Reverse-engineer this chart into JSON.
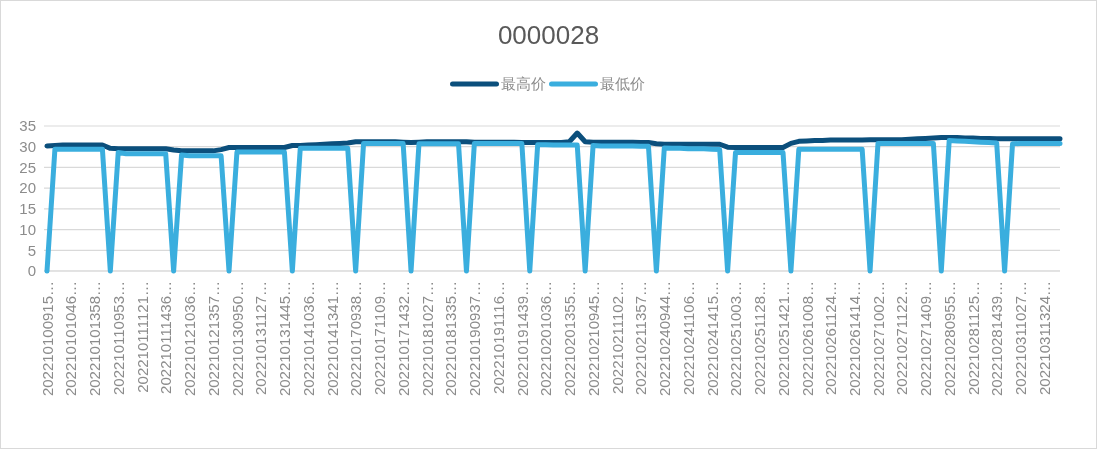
{
  "chart_data": {
    "type": "line",
    "title": "0000028",
    "categories": [
      "202210100915…",
      null,
      null,
      "202210101046…",
      null,
      null,
      "202210101358…",
      null,
      null,
      "202210110953…",
      null,
      null,
      "202210111121…",
      null,
      null,
      "202210111436…",
      null,
      null,
      "202210121036…",
      null,
      null,
      "202210121357…",
      null,
      null,
      "202210130950…",
      null,
      null,
      "202210131127…",
      null,
      null,
      "202210131445…",
      null,
      null,
      "202210141036…",
      null,
      null,
      "202210141341…",
      null,
      null,
      "202210170938…",
      null,
      null,
      "202210171109…",
      null,
      null,
      "202210171432…",
      null,
      null,
      "202210181027…",
      null,
      null,
      "202210181335…",
      null,
      null,
      "202210190937…",
      null,
      null,
      "202210191116…",
      null,
      null,
      "202210191439…",
      null,
      null,
      "202210201036…",
      null,
      null,
      "202210201355…",
      null,
      null,
      "202210210945…",
      null,
      null,
      "202210211102…",
      null,
      null,
      "202210211357…",
      null,
      null,
      "202210240944…",
      null,
      null,
      "202210241106…",
      null,
      null,
      "202210241415…",
      null,
      null,
      "202210251003…",
      null,
      null,
      "202210251128…",
      null,
      null,
      "202210251421…",
      null,
      null,
      "202210261008…",
      null,
      null,
      "202210261124…",
      null,
      null,
      "202210261414…",
      null,
      null,
      "202210271002…",
      null,
      null,
      "202210271122…",
      null,
      null,
      "202210271409…",
      null,
      null,
      "202210280955…",
      null,
      null,
      "202210281125…",
      null,
      null,
      "202210281439…",
      null,
      null,
      "202210311027…",
      null,
      null,
      "202210311324…",
      null,
      null
    ],
    "series": [
      {
        "name": "最高价",
        "color": "#0b4f7c",
        "values": [
          30.2,
          30.3,
          30.4,
          30.4,
          30.4,
          30.4,
          30.4,
          30.4,
          29.6,
          29.5,
          29.5,
          29.5,
          29.5,
          29.5,
          29.5,
          29.5,
          29.2,
          29.0,
          29.0,
          29.0,
          29.0,
          29.0,
          29.3,
          29.8,
          29.8,
          29.8,
          29.8,
          29.8,
          29.8,
          29.8,
          29.8,
          30.3,
          30.3,
          30.4,
          30.5,
          30.6,
          30.7,
          30.8,
          30.9,
          31.2,
          31.2,
          31.2,
          31.2,
          31.2,
          31.2,
          31.1,
          31.0,
          31.1,
          31.2,
          31.2,
          31.2,
          31.2,
          31.2,
          31.2,
          31.1,
          31.1,
          31.1,
          31.1,
          31.1,
          31.1,
          31.0,
          31.0,
          31.0,
          31.0,
          31.0,
          31.0,
          31.2,
          33.3,
          31.2,
          31.1,
          31.1,
          31.1,
          31.1,
          31.1,
          31.1,
          31.0,
          31.0,
          30.7,
          30.6,
          30.6,
          30.6,
          30.6,
          30.6,
          30.6,
          30.6,
          30.6,
          29.9,
          29.8,
          29.8,
          29.8,
          29.8,
          29.8,
          29.8,
          29.8,
          30.8,
          31.3,
          31.4,
          31.5,
          31.5,
          31.6,
          31.6,
          31.6,
          31.6,
          31.6,
          31.7,
          31.7,
          31.7,
          31.7,
          31.7,
          31.8,
          31.9,
          32.0,
          32.1,
          32.2,
          32.2,
          32.2,
          32.1,
          32.1,
          32.0,
          32.0,
          31.9,
          31.9,
          31.9,
          31.9,
          31.9,
          31.9,
          31.9,
          31.9,
          31.9
        ]
      },
      {
        "name": "最低价",
        "color": "#3aaede",
        "values": [
          0,
          29.4,
          29.4,
          29.4,
          29.4,
          29.4,
          29.4,
          29.4,
          0,
          28.6,
          28.3,
          28.3,
          28.3,
          28.3,
          28.3,
          28.3,
          0,
          28.0,
          27.8,
          27.8,
          27.8,
          27.8,
          27.8,
          0,
          28.7,
          28.7,
          28.7,
          28.7,
          28.7,
          28.7,
          28.7,
          0,
          29.6,
          29.6,
          29.6,
          29.6,
          29.6,
          29.6,
          29.6,
          0,
          30.8,
          30.8,
          30.8,
          30.8,
          30.8,
          30.8,
          0,
          30.7,
          30.7,
          30.7,
          30.7,
          30.7,
          30.7,
          0,
          30.8,
          30.8,
          30.8,
          30.8,
          30.8,
          30.8,
          30.8,
          0,
          30.5,
          30.5,
          30.4,
          30.4,
          30.4,
          30.4,
          0,
          30.3,
          30.2,
          30.2,
          30.2,
          30.2,
          30.2,
          30.1,
          30.1,
          0,
          29.7,
          29.6,
          29.6,
          29.5,
          29.5,
          29.5,
          29.4,
          29.3,
          0,
          28.6,
          28.6,
          28.6,
          28.6,
          28.6,
          28.6,
          28.6,
          0,
          29.4,
          29.4,
          29.4,
          29.4,
          29.4,
          29.4,
          29.4,
          29.4,
          29.4,
          0,
          30.8,
          30.8,
          30.8,
          30.8,
          30.8,
          30.8,
          30.8,
          30.8,
          0,
          31.5,
          31.4,
          31.3,
          31.2,
          31.1,
          31.0,
          30.9,
          0,
          30.7,
          30.8,
          30.8,
          30.8,
          30.8,
          30.8,
          30.8
        ]
      }
    ],
    "ylim": [
      0,
      35
    ],
    "yticks": [
      0,
      5,
      10,
      15,
      20,
      25,
      30,
      35
    ],
    "grid": "y",
    "legend": "top",
    "marker": "none",
    "line_style": "solid"
  }
}
